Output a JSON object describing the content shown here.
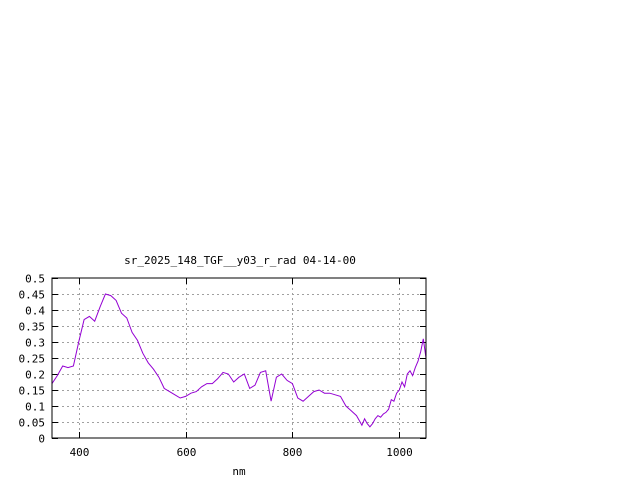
{
  "chart_data": {
    "type": "line",
    "title": "sr_2025_148_TGF__y03_r_rad 04-14-00",
    "xlabel": "nm",
    "ylabel": "",
    "xlim": [
      350,
      1050
    ],
    "ylim": [
      0,
      0.5
    ],
    "x_ticks": [
      400,
      600,
      800,
      1000
    ],
    "x_tick_labels": [
      "400",
      "600",
      "800",
      "1000"
    ],
    "y_ticks": [
      0,
      0.05,
      0.1,
      0.15,
      0.2,
      0.25,
      0.3,
      0.35,
      0.4,
      0.45,
      0.5
    ],
    "y_tick_labels": [
      "0",
      "0.05",
      "0.1",
      "0.15",
      "0.2",
      "0.25",
      "0.3",
      "0.35",
      "0.4",
      "0.45",
      "0.5"
    ],
    "grid": true,
    "color": "#9400d3",
    "series": [
      {
        "x": [
          350,
          360,
          370,
          380,
          390,
          400,
          410,
          420,
          430,
          440,
          450,
          460,
          470,
          480,
          490,
          500,
          510,
          520,
          530,
          540,
          550,
          560,
          570,
          580,
          590,
          600,
          610,
          620,
          630,
          640,
          650,
          660,
          670,
          680,
          690,
          700,
          710,
          720,
          730,
          740,
          750,
          760,
          770,
          780,
          790,
          800,
          810,
          820,
          830,
          840,
          850,
          860,
          870,
          880,
          890,
          900,
          910,
          920,
          925,
          930,
          935,
          940,
          945,
          950,
          955,
          960,
          965,
          970,
          975,
          980,
          985,
          990,
          995,
          1000,
          1005,
          1010,
          1015,
          1020,
          1025,
          1030,
          1035,
          1040,
          1045,
          1050
        ],
        "y": [
          0.17,
          0.195,
          0.225,
          0.22,
          0.225,
          0.3,
          0.37,
          0.38,
          0.365,
          0.41,
          0.45,
          0.445,
          0.43,
          0.39,
          0.375,
          0.33,
          0.305,
          0.265,
          0.235,
          0.215,
          0.19,
          0.155,
          0.145,
          0.135,
          0.125,
          0.13,
          0.14,
          0.145,
          0.16,
          0.17,
          0.17,
          0.185,
          0.205,
          0.2,
          0.175,
          0.19,
          0.2,
          0.155,
          0.165,
          0.205,
          0.21,
          0.115,
          0.19,
          0.2,
          0.18,
          0.17,
          0.125,
          0.115,
          0.13,
          0.145,
          0.15,
          0.14,
          0.14,
          0.135,
          0.13,
          0.1,
          0.085,
          0.07,
          0.055,
          0.04,
          0.06,
          0.045,
          0.035,
          0.045,
          0.06,
          0.07,
          0.065,
          0.075,
          0.08,
          0.09,
          0.12,
          0.115,
          0.14,
          0.15,
          0.175,
          0.16,
          0.2,
          0.21,
          0.195,
          0.22,
          0.24,
          0.27,
          0.31,
          0.25
        ]
      }
    ]
  }
}
